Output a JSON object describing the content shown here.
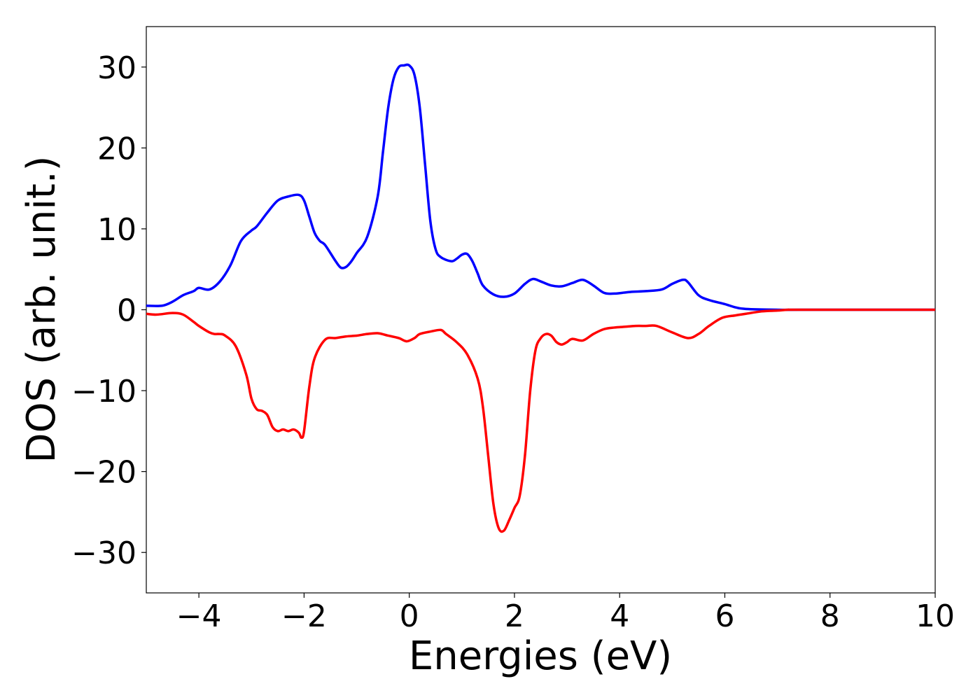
{
  "chart_data": {
    "type": "line",
    "title": "",
    "xlabel": "Energies (eV)",
    "ylabel": "DOS (arb. unit.)",
    "xlim": [
      -5,
      10
    ],
    "ylim": [
      -35,
      35
    ],
    "xticks": [
      -4,
      -2,
      0,
      2,
      4,
      6,
      8,
      10
    ],
    "yticks": [
      -30,
      -20,
      -10,
      0,
      10,
      20,
      30
    ],
    "xtick_labels": [
      "−4",
      "−2",
      "0",
      "2",
      "4",
      "6",
      "8",
      "10"
    ],
    "ytick_labels": [
      "−30",
      "−20",
      "−10",
      "0",
      "10",
      "20",
      "30"
    ],
    "grid": false,
    "legend": "none",
    "series": [
      {
        "color": "#0000ff",
        "x": [
          -5.0,
          -4.7,
          -4.5,
          -4.3,
          -4.1,
          -4.0,
          -3.8,
          -3.6,
          -3.4,
          -3.2,
          -3.0,
          -2.9,
          -2.7,
          -2.5,
          -2.3,
          -2.1,
          -2.0,
          -1.9,
          -1.8,
          -1.7,
          -1.6,
          -1.4,
          -1.3,
          -1.2,
          -1.1,
          -1.0,
          -0.8,
          -0.6,
          -0.5,
          -0.4,
          -0.3,
          -0.2,
          -0.1,
          0.0,
          0.1,
          0.2,
          0.3,
          0.4,
          0.5,
          0.6,
          0.8,
          0.9,
          1.0,
          1.1,
          1.2,
          1.3,
          1.4,
          1.6,
          1.8,
          2.0,
          2.2,
          2.35,
          2.5,
          2.7,
          2.9,
          3.1,
          3.3,
          3.5,
          3.7,
          3.9,
          4.2,
          4.5,
          4.8,
          5.0,
          5.2,
          5.3,
          5.5,
          5.7,
          6.0,
          6.2,
          6.4,
          7.0,
          7.5,
          10.0
        ],
        "y": [
          0.5,
          0.5,
          1.0,
          1.8,
          2.3,
          2.7,
          2.5,
          3.5,
          5.5,
          8.5,
          9.8,
          10.3,
          12.0,
          13.5,
          14.0,
          14.2,
          13.5,
          11.5,
          9.5,
          8.5,
          8.0,
          6.0,
          5.2,
          5.3,
          6.0,
          7.0,
          9.0,
          14.0,
          19.5,
          25.0,
          28.5,
          30.0,
          30.2,
          30.2,
          29.0,
          25.0,
          18.0,
          11.0,
          7.5,
          6.5,
          6.0,
          6.3,
          6.8,
          6.9,
          6.0,
          4.5,
          3.0,
          1.9,
          1.6,
          2.0,
          3.2,
          3.8,
          3.5,
          3.0,
          2.9,
          3.3,
          3.7,
          3.0,
          2.1,
          2.0,
          2.2,
          2.3,
          2.5,
          3.2,
          3.7,
          3.4,
          1.8,
          1.2,
          0.7,
          0.3,
          0.1,
          0.0,
          0.0,
          0.0
        ]
      },
      {
        "color": "#ff0000",
        "x": [
          -5.0,
          -4.8,
          -4.5,
          -4.3,
          -4.1,
          -4.0,
          -3.8,
          -3.7,
          -3.6,
          -3.5,
          -3.3,
          -3.1,
          -3.0,
          -2.9,
          -2.8,
          -2.7,
          -2.6,
          -2.5,
          -2.4,
          -2.3,
          -2.2,
          -2.1,
          -2.05,
          -2.0,
          -1.9,
          -1.8,
          -1.6,
          -1.4,
          -1.2,
          -1.0,
          -0.8,
          -0.6,
          -0.4,
          -0.2,
          -0.05,
          0.1,
          0.2,
          0.4,
          0.6,
          0.7,
          0.9,
          1.1,
          1.3,
          1.4,
          1.5,
          1.6,
          1.7,
          1.8,
          1.9,
          2.0,
          2.1,
          2.2,
          2.3,
          2.4,
          2.5,
          2.6,
          2.7,
          2.8,
          2.9,
          3.0,
          3.1,
          3.3,
          3.5,
          3.7,
          3.9,
          4.1,
          4.3,
          4.5,
          4.7,
          5.0,
          5.3,
          5.5,
          5.7,
          5.95,
          6.2,
          6.4,
          6.7,
          7.0,
          7.2,
          7.5,
          10.0
        ],
        "y": [
          -0.5,
          -0.6,
          -0.4,
          -0.6,
          -1.5,
          -2.0,
          -2.8,
          -3.0,
          -3.0,
          -3.2,
          -4.5,
          -8.0,
          -11.0,
          -12.3,
          -12.5,
          -13.0,
          -14.5,
          -15.0,
          -14.8,
          -15.0,
          -14.8,
          -15.2,
          -15.8,
          -15.0,
          -9.5,
          -6.0,
          -3.7,
          -3.5,
          -3.3,
          -3.2,
          -3.0,
          -2.9,
          -3.2,
          -3.5,
          -3.9,
          -3.5,
          -3.0,
          -2.7,
          -2.5,
          -3.0,
          -4.0,
          -5.5,
          -8.5,
          -12.0,
          -18.0,
          -24.0,
          -27.0,
          -27.3,
          -26.0,
          -24.5,
          -23.0,
          -18.0,
          -10.0,
          -5.0,
          -3.5,
          -3.0,
          -3.2,
          -4.0,
          -4.3,
          -4.0,
          -3.6,
          -3.8,
          -3.0,
          -2.4,
          -2.2,
          -2.1,
          -2.0,
          -2.0,
          -2.0,
          -2.8,
          -3.5,
          -3.0,
          -2.0,
          -1.0,
          -0.7,
          -0.5,
          -0.2,
          -0.1,
          0.0,
          0.0,
          0.0
        ]
      }
    ]
  }
}
